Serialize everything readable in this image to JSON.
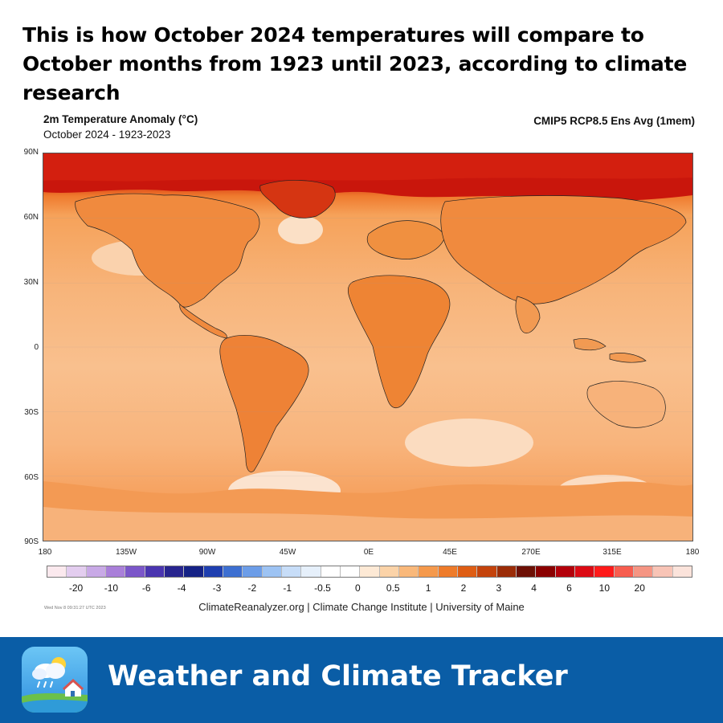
{
  "headline": "This is how October 2024 temperatures will compare to October months from 1923 until 2023, according to climate research",
  "map": {
    "title": "2m Temperature Anomaly (°C)",
    "subtitle": "October 2024 - 1923-2023",
    "model": "CMIP5 RCP8.5 Ens Avg (1mem)",
    "lat_labels": [
      "90N",
      "60N",
      "30N",
      "0",
      "30S",
      "60S",
      "90S"
    ],
    "lon_labels": [
      "180",
      "135W",
      "90W",
      "45W",
      "0E",
      "45E",
      "270E",
      "315E",
      "180"
    ]
  },
  "colorbar": {
    "labels": [
      "-20",
      "-10",
      "-6",
      "-4",
      "-3",
      "-2",
      "-1",
      "-0.5",
      "0",
      "0.5",
      "1",
      "2",
      "3",
      "4",
      "6",
      "10",
      "20"
    ],
    "colors": [
      "#fbe9ee",
      "#e3cdef",
      "#c8a9e6",
      "#a97fd9",
      "#7b56c9",
      "#4a35b0",
      "#28258f",
      "#152286",
      "#1f3fb0",
      "#3d6fd1",
      "#6c9de8",
      "#9dc3f3",
      "#c7ddf8",
      "#e6f0fb",
      "#ffffff",
      "#ffffff",
      "#fde9d5",
      "#fbd3a8",
      "#f9b87a",
      "#f5994c",
      "#ee7b2a",
      "#de5d14",
      "#c4430c",
      "#9b2c07",
      "#6d1005",
      "#8b0000",
      "#b3000a",
      "#dc0a14",
      "#ff1a1a",
      "#f75d4f",
      "#f59583",
      "#f8c4b6",
      "#fbe3db"
    ]
  },
  "timestamp": "Wed Nov 8 09:31:27 UTC 2023",
  "credit": "ClimateReanalyzer.org | Climate Change Institute | University of Maine",
  "footer": {
    "title": "Weather and Climate Tracker",
    "bg_color": "#0a5da6"
  },
  "icons": [
    "weather-app-icon"
  ]
}
